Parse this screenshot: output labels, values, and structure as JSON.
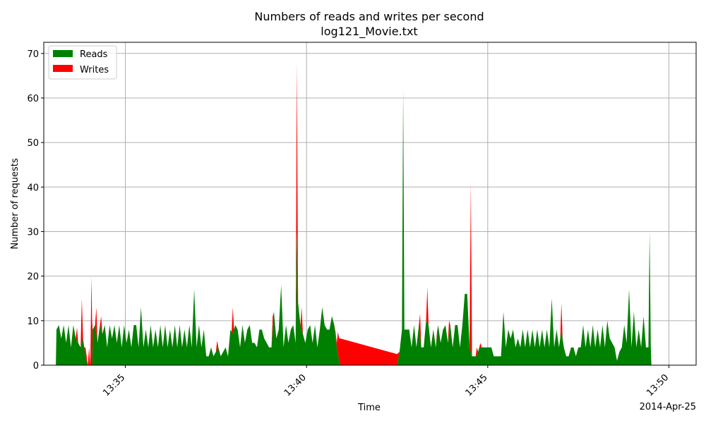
{
  "chart_data": {
    "type": "area",
    "title": "Numbers of reads and writes per second",
    "subtitle": "log121_Movie.txt",
    "xlabel": "Time",
    "ylabel": "Number of requests",
    "x_offset_label": "2014-Apr-25",
    "xlim": [
      "13:32:45",
      "13:50:45"
    ],
    "ylim": [
      0,
      72.5
    ],
    "x_ticks": [
      "13:35",
      "13:40",
      "13:45",
      "13:50"
    ],
    "y_ticks": [
      0,
      10,
      20,
      30,
      40,
      50,
      60,
      70
    ],
    "grid": true,
    "stacked": true,
    "legend_position": "top-left",
    "series": [
      {
        "name": "Reads",
        "color": "#008000",
        "points": [
          [
            "13:33:05",
            0
          ],
          [
            "13:33:06",
            8
          ],
          [
            "13:33:10",
            9
          ],
          [
            "13:33:14",
            6
          ],
          [
            "13:33:18",
            9
          ],
          [
            "13:33:22",
            5
          ],
          [
            "13:33:26",
            9
          ],
          [
            "13:33:30",
            4
          ],
          [
            "13:33:34",
            9
          ],
          [
            "13:33:38",
            6
          ],
          [
            "13:33:42",
            5
          ],
          [
            "13:33:46",
            4
          ],
          [
            "13:33:50",
            6
          ],
          [
            "13:33:54",
            2
          ],
          [
            "13:33:58",
            0
          ],
          [
            "13:34:05",
            0
          ],
          [
            "13:34:06",
            8
          ],
          [
            "13:34:10",
            9
          ],
          [
            "13:34:14",
            5
          ],
          [
            "13:34:18",
            9
          ],
          [
            "13:34:22",
            7
          ],
          [
            "13:34:26",
            9
          ],
          [
            "13:34:30",
            4
          ],
          [
            "13:34:34",
            9
          ],
          [
            "13:34:38",
            6
          ],
          [
            "13:34:42",
            9
          ],
          [
            "13:34:46",
            5
          ],
          [
            "13:34:50",
            9
          ],
          [
            "13:34:54",
            4
          ],
          [
            "13:34:58",
            9
          ],
          [
            "13:35:02",
            5
          ],
          [
            "13:35:06",
            8
          ],
          [
            "13:35:10",
            4
          ],
          [
            "13:35:14",
            9
          ],
          [
            "13:35:18",
            9
          ],
          [
            "13:35:22",
            4
          ],
          [
            "13:35:26",
            13
          ],
          [
            "13:35:30",
            4
          ],
          [
            "13:35:34",
            8
          ],
          [
            "13:35:38",
            4
          ],
          [
            "13:35:42",
            9
          ],
          [
            "13:35:46",
            4
          ],
          [
            "13:35:50",
            8
          ],
          [
            "13:35:54",
            4
          ],
          [
            "13:35:58",
            9
          ],
          [
            "13:36:02",
            4
          ],
          [
            "13:36:06",
            9
          ],
          [
            "13:36:10",
            4
          ],
          [
            "13:36:14",
            8
          ],
          [
            "13:36:18",
            4
          ],
          [
            "13:36:22",
            9
          ],
          [
            "13:36:26",
            4
          ],
          [
            "13:36:30",
            9
          ],
          [
            "13:36:34",
            4
          ],
          [
            "13:36:38",
            8
          ],
          [
            "13:36:42",
            4
          ],
          [
            "13:36:46",
            9
          ],
          [
            "13:36:50",
            4
          ],
          [
            "13:36:54",
            17
          ],
          [
            "13:36:58",
            4
          ],
          [
            "13:37:02",
            9
          ],
          [
            "13:37:06",
            4
          ],
          [
            "13:37:10",
            8
          ],
          [
            "13:37:14",
            2
          ],
          [
            "13:37:18",
            2
          ],
          [
            "13:37:22",
            4
          ],
          [
            "13:37:26",
            2
          ],
          [
            "13:37:30",
            3
          ],
          [
            "13:37:34",
            4
          ],
          [
            "13:37:38",
            2
          ],
          [
            "13:37:42",
            3
          ],
          [
            "13:37:46",
            4
          ],
          [
            "13:37:50",
            2
          ],
          [
            "13:37:54",
            8
          ],
          [
            "13:37:58",
            7
          ],
          [
            "13:38:02",
            9
          ],
          [
            "13:38:06",
            8
          ],
          [
            "13:38:10",
            4
          ],
          [
            "13:38:14",
            9
          ],
          [
            "13:38:18",
            5
          ],
          [
            "13:38:22",
            8
          ],
          [
            "13:38:26",
            9
          ],
          [
            "13:38:30",
            5
          ],
          [
            "13:38:34",
            5
          ],
          [
            "13:38:38",
            4
          ],
          [
            "13:38:42",
            8
          ],
          [
            "13:38:46",
            8
          ],
          [
            "13:38:50",
            6
          ],
          [
            "13:38:54",
            5
          ],
          [
            "13:38:58",
            4
          ],
          [
            "13:39:02",
            4
          ],
          [
            "13:39:06",
            12
          ],
          [
            "13:39:10",
            6
          ],
          [
            "13:39:14",
            8
          ],
          [
            "13:39:18",
            18
          ],
          [
            "13:39:22",
            4
          ],
          [
            "13:39:26",
            9
          ],
          [
            "13:39:30",
            5
          ],
          [
            "13:39:34",
            8
          ],
          [
            "13:39:38",
            9
          ],
          [
            "13:39:42",
            5
          ],
          [
            "13:39:44",
            30
          ],
          [
            "13:39:46",
            14
          ],
          [
            "13:39:50",
            9
          ],
          [
            "13:39:54",
            7
          ],
          [
            "13:39:58",
            5
          ],
          [
            "13:40:02",
            8
          ],
          [
            "13:40:06",
            9
          ],
          [
            "13:40:10",
            5
          ],
          [
            "13:40:14",
            9
          ],
          [
            "13:40:18",
            4
          ],
          [
            "13:40:22",
            8
          ],
          [
            "13:40:26",
            13
          ],
          [
            "13:40:30",
            9
          ],
          [
            "13:40:34",
            8
          ],
          [
            "13:40:38",
            8
          ],
          [
            "13:40:42",
            11
          ],
          [
            "13:40:46",
            9
          ],
          [
            "13:40:50",
            4
          ],
          [
            "13:40:54",
            1
          ],
          [
            "13:40:56",
            0
          ],
          [
            "13:42:30",
            0
          ],
          [
            "13:42:34",
            3
          ],
          [
            "13:42:38",
            8
          ],
          [
            "13:42:40",
            62
          ],
          [
            "13:42:42",
            8
          ],
          [
            "13:42:46",
            8
          ],
          [
            "13:42:50",
            8
          ],
          [
            "13:42:54",
            4
          ],
          [
            "13:42:58",
            9
          ],
          [
            "13:43:02",
            4
          ],
          [
            "13:43:06",
            9
          ],
          [
            "13:43:10",
            4
          ],
          [
            "13:43:14",
            4
          ],
          [
            "13:43:18",
            10
          ],
          [
            "13:43:22",
            9
          ],
          [
            "13:43:26",
            4
          ],
          [
            "13:43:30",
            8
          ],
          [
            "13:43:34",
            4
          ],
          [
            "13:43:38",
            9
          ],
          [
            "13:43:42",
            5
          ],
          [
            "13:43:46",
            8
          ],
          [
            "13:43:50",
            9
          ],
          [
            "13:43:54",
            5
          ],
          [
            "13:43:58",
            9
          ],
          [
            "13:44:02",
            4
          ],
          [
            "13:44:06",
            9
          ],
          [
            "13:44:10",
            9
          ],
          [
            "13:44:14",
            4
          ],
          [
            "13:44:18",
            9
          ],
          [
            "13:44:22",
            16
          ],
          [
            "13:44:26",
            16
          ],
          [
            "13:44:30",
            4
          ],
          [
            "13:44:34",
            2
          ],
          [
            "13:44:38",
            2
          ],
          [
            "13:44:42",
            2
          ],
          [
            "13:44:46",
            4
          ],
          [
            "13:44:50",
            4
          ],
          [
            "13:44:54",
            4
          ],
          [
            "13:44:58",
            4
          ],
          [
            "13:45:02",
            4
          ],
          [
            "13:45:06",
            4
          ],
          [
            "13:45:10",
            2
          ],
          [
            "13:45:14",
            2
          ],
          [
            "13:45:18",
            2
          ],
          [
            "13:45:22",
            2
          ],
          [
            "13:45:26",
            12
          ],
          [
            "13:45:30",
            4
          ],
          [
            "13:45:34",
            8
          ],
          [
            "13:45:38",
            6
          ],
          [
            "13:45:42",
            8
          ],
          [
            "13:45:46",
            4
          ],
          [
            "13:45:50",
            6
          ],
          [
            "13:45:54",
            4
          ],
          [
            "13:45:58",
            8
          ],
          [
            "13:46:02",
            4
          ],
          [
            "13:46:06",
            8
          ],
          [
            "13:46:10",
            4
          ],
          [
            "13:46:14",
            8
          ],
          [
            "13:46:18",
            4
          ],
          [
            "13:46:22",
            8
          ],
          [
            "13:46:26",
            4
          ],
          [
            "13:46:30",
            8
          ],
          [
            "13:46:34",
            4
          ],
          [
            "13:46:38",
            8
          ],
          [
            "13:46:42",
            4
          ],
          [
            "13:46:46",
            15
          ],
          [
            "13:46:50",
            4
          ],
          [
            "13:46:54",
            8
          ],
          [
            "13:46:58",
            4
          ],
          [
            "13:47:02",
            8
          ],
          [
            "13:47:06",
            4
          ],
          [
            "13:47:10",
            2
          ],
          [
            "13:47:14",
            2
          ],
          [
            "13:47:18",
            4
          ],
          [
            "13:47:22",
            4
          ],
          [
            "13:47:26",
            2
          ],
          [
            "13:47:30",
            4
          ],
          [
            "13:47:34",
            4
          ],
          [
            "13:47:38",
            9
          ],
          [
            "13:47:42",
            4
          ],
          [
            "13:47:46",
            8
          ],
          [
            "13:47:50",
            4
          ],
          [
            "13:47:54",
            9
          ],
          [
            "13:47:58",
            4
          ],
          [
            "13:48:02",
            8
          ],
          [
            "13:48:06",
            4
          ],
          [
            "13:48:10",
            9
          ],
          [
            "13:48:14",
            4
          ],
          [
            "13:48:18",
            10
          ],
          [
            "13:48:22",
            6
          ],
          [
            "13:48:26",
            5
          ],
          [
            "13:48:30",
            4
          ],
          [
            "13:48:34",
            1
          ],
          [
            "13:48:38",
            3
          ],
          [
            "13:48:42",
            4
          ],
          [
            "13:48:46",
            9
          ],
          [
            "13:48:50",
            5
          ],
          [
            "13:48:54",
            17
          ],
          [
            "13:48:58",
            4
          ],
          [
            "13:49:02",
            12
          ],
          [
            "13:49:06",
            4
          ],
          [
            "13:49:10",
            8
          ],
          [
            "13:49:14",
            4
          ],
          [
            "13:49:18",
            11
          ],
          [
            "13:49:22",
            4
          ],
          [
            "13:49:26",
            4
          ],
          [
            "13:49:28",
            30
          ],
          [
            "13:49:30",
            4
          ],
          [
            "13:49:31",
            0
          ]
        ]
      },
      {
        "name": "Writes",
        "color": "#ff0000",
        "points": [
          [
            "13:33:05",
            0
          ],
          [
            "13:33:38",
            0
          ],
          [
            "13:33:40",
            3
          ],
          [
            "13:33:42",
            0
          ],
          [
            "13:33:46",
            0
          ],
          [
            "13:33:48",
            10
          ],
          [
            "13:33:50",
            0
          ],
          [
            "13:33:52",
            0
          ],
          [
            "13:33:54",
            2
          ],
          [
            "13:33:58",
            0
          ],
          [
            "13:34:00",
            4
          ],
          [
            "13:34:02",
            0
          ],
          [
            "13:34:04",
            20
          ],
          [
            "13:34:06",
            0
          ],
          [
            "13:34:10",
            0
          ],
          [
            "13:34:12",
            6
          ],
          [
            "13:34:14",
            0
          ],
          [
            "13:34:18",
            0
          ],
          [
            "13:34:20",
            3
          ],
          [
            "13:34:22",
            0
          ],
          [
            "13:37:30",
            0
          ],
          [
            "13:37:32",
            2
          ],
          [
            "13:37:34",
            0
          ],
          [
            "13:37:56",
            0
          ],
          [
            "13:37:58",
            6
          ],
          [
            "13:38:00",
            0
          ],
          [
            "13:39:02",
            0
          ],
          [
            "13:39:04",
            3
          ],
          [
            "13:39:06",
            0
          ],
          [
            "13:39:42",
            0
          ],
          [
            "13:39:44",
            38
          ],
          [
            "13:39:46",
            0
          ],
          [
            "13:39:50",
            0
          ],
          [
            "13:39:52",
            5
          ],
          [
            "13:39:54",
            0
          ],
          [
            "13:40:46",
            0
          ],
          [
            "13:40:48",
            1
          ],
          [
            "13:40:50",
            1
          ],
          [
            "13:40:52",
            5
          ],
          [
            "13:40:54",
            5
          ],
          [
            "13:40:56",
            6
          ],
          [
            "13:42:30",
            2.5
          ],
          [
            "13:42:34",
            0
          ],
          [
            "13:43:06",
            0
          ],
          [
            "13:43:08",
            5
          ],
          [
            "13:43:10",
            0
          ],
          [
            "13:43:18",
            0
          ],
          [
            "13:43:20",
            8
          ],
          [
            "13:43:22",
            0
          ],
          [
            "13:43:34",
            0
          ],
          [
            "13:43:36",
            1
          ],
          [
            "13:43:38",
            0
          ],
          [
            "13:43:54",
            0
          ],
          [
            "13:43:56",
            3
          ],
          [
            "13:43:58",
            0
          ],
          [
            "13:44:30",
            0
          ],
          [
            "13:44:32",
            38
          ],
          [
            "13:44:34",
            0
          ],
          [
            "13:44:40",
            0
          ],
          [
            "13:44:42",
            2
          ],
          [
            "13:44:44",
            0
          ],
          [
            "13:44:46",
            0
          ],
          [
            "13:44:48",
            1
          ],
          [
            "13:44:50",
            0
          ],
          [
            "13:47:00",
            0
          ],
          [
            "13:47:02",
            6
          ],
          [
            "13:47:04",
            0
          ],
          [
            "13:49:31",
            0
          ]
        ]
      }
    ]
  }
}
